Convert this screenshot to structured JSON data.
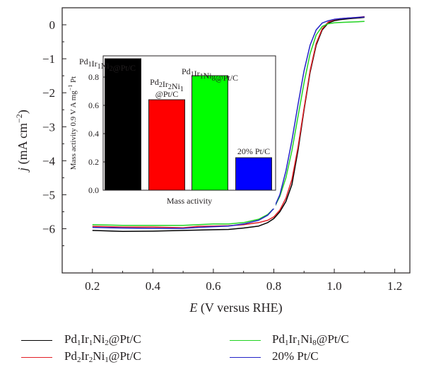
{
  "chart_data": [
    {
      "type": "line",
      "title": "",
      "xlabel_parts": [
        "E",
        " (V versus RHE)"
      ],
      "ylabel_parts": [
        "j",
        " (mA cm",
        "−2",
        ")"
      ],
      "xlim": [
        0.1,
        1.25
      ],
      "ylim": [
        -7.3,
        0.5
      ],
      "xticks": [
        0.2,
        0.4,
        0.6,
        0.8,
        1.0,
        1.2
      ],
      "xtick_labels": [
        "0.2",
        "0.4",
        "0.6",
        "0.8",
        "1.0",
        "1.2"
      ],
      "yticks": [
        0,
        -1,
        -2,
        -3,
        -4,
        -5,
        -6
      ],
      "ytick_labels": [
        "0",
        "−1",
        "−2",
        "−3",
        "−4",
        "−5",
        "−6"
      ],
      "legend_position": "bottom",
      "series": [
        {
          "name": "Pd1Ir1Ni2@Pt/C",
          "color": "#000000",
          "x": [
            0.2,
            0.3,
            0.4,
            0.5,
            0.55,
            0.6,
            0.65,
            0.7,
            0.75,
            0.78,
            0.8,
            0.82,
            0.84,
            0.86,
            0.88,
            0.9,
            0.92,
            0.94,
            0.96,
            0.98,
            1.0,
            1.02,
            1.05,
            1.08,
            1.1
          ],
          "y": [
            -6.05,
            -6.08,
            -6.07,
            -6.05,
            -6.04,
            -6.03,
            -6.02,
            -5.98,
            -5.92,
            -5.82,
            -5.7,
            -5.5,
            -5.2,
            -4.7,
            -3.7,
            -2.5,
            -1.4,
            -0.6,
            -0.15,
            0.05,
            0.12,
            0.15,
            0.18,
            0.2,
            0.22
          ]
        },
        {
          "name": "Pd2Ir2Ni1@Pt/C",
          "color": "#e21f26",
          "x": [
            0.2,
            0.3,
            0.4,
            0.5,
            0.55,
            0.6,
            0.65,
            0.7,
            0.75,
            0.78,
            0.8,
            0.82,
            0.84,
            0.86,
            0.88,
            0.9,
            0.92,
            0.94,
            0.96,
            0.98,
            1.0,
            1.02,
            1.05,
            1.08,
            1.1
          ],
          "y": [
            -5.93,
            -5.95,
            -5.95,
            -5.97,
            -5.93,
            -5.92,
            -5.91,
            -5.88,
            -5.82,
            -5.75,
            -5.65,
            -5.45,
            -5.1,
            -4.55,
            -3.6,
            -2.45,
            -1.35,
            -0.55,
            -0.12,
            0.08,
            0.15,
            0.18,
            0.2,
            0.22,
            0.24
          ]
        },
        {
          "name": "Pd1Ir1Ni8@Pt/C",
          "color": "#22d322",
          "x": [
            0.2,
            0.3,
            0.4,
            0.5,
            0.55,
            0.6,
            0.65,
            0.7,
            0.75,
            0.78,
            0.8,
            0.82,
            0.84,
            0.86,
            0.88,
            0.9,
            0.92,
            0.94,
            0.96,
            0.98,
            1.0,
            1.02,
            1.05,
            1.08,
            1.1
          ],
          "y": [
            -5.88,
            -5.9,
            -5.9,
            -5.9,
            -5.88,
            -5.86,
            -5.86,
            -5.82,
            -5.72,
            -5.58,
            -5.4,
            -5.05,
            -4.5,
            -3.7,
            -2.7,
            -1.7,
            -0.85,
            -0.3,
            -0.05,
            0.03,
            0.06,
            0.07,
            0.08,
            0.09,
            0.1
          ]
        },
        {
          "name": "20% Pt/C",
          "color": "#2323c8",
          "x": [
            0.2,
            0.3,
            0.4,
            0.5,
            0.55,
            0.6,
            0.65,
            0.7,
            0.75,
            0.78,
            0.8,
            0.82,
            0.84,
            0.86,
            0.88,
            0.9,
            0.92,
            0.94,
            0.96,
            0.98,
            1.0,
            1.02,
            1.05,
            1.08,
            1.1
          ],
          "y": [
            -5.96,
            -5.98,
            -5.99,
            -5.99,
            -5.96,
            -5.94,
            -5.92,
            -5.86,
            -5.75,
            -5.6,
            -5.4,
            -5.0,
            -4.3,
            -3.4,
            -2.35,
            -1.35,
            -0.6,
            -0.15,
            0.05,
            0.12,
            0.16,
            0.18,
            0.2,
            0.22,
            0.23
          ]
        }
      ]
    },
    {
      "type": "bar",
      "title": "",
      "xlabel": "Mass activity",
      "ylabel": "Mass activity 0.9 V A mg−1 Pt",
      "ylim": [
        0,
        0.95
      ],
      "yticks": [
        0.0,
        0.2,
        0.4,
        0.6,
        0.8
      ],
      "ytick_labels": [
        "0.0",
        "0.2",
        "0.4",
        "0.6",
        "0.8"
      ],
      "categories": [
        "Pd1Ir1Ni2@Pt/C",
        "Pd2Ir2Ni1@Pt/C",
        "Pd1Ir1Ni8@Pt/C",
        "20% Pt/C"
      ],
      "values": [
        0.93,
        0.64,
        0.81,
        0.23
      ],
      "colors": [
        "#000000",
        "#ff0000",
        "#00ff00",
        "#0000ff"
      ]
    }
  ]
}
